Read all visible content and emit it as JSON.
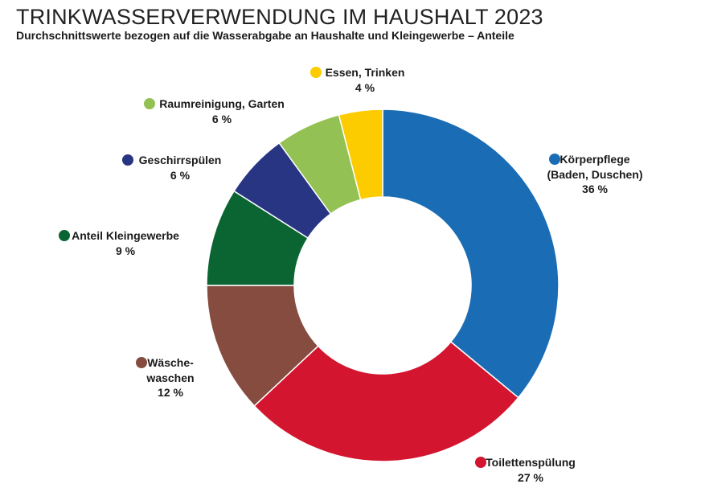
{
  "chart_data": {
    "type": "donut",
    "title": "TRINKWASSERVERWENDUNG IM HAUSHALT 2023",
    "subtitle": "Durchschnittswerte bezogen auf die Wasserabgabe an Haushalte und Kleingewerbe – Anteile",
    "categories": [
      "Körperpflege\n(Baden, Duschen)",
      "Toilettenspülung",
      "Wäsche-\nwaschen",
      "Anteil Kleingewerbe",
      "Geschirrspülen",
      "Raumreinigung, Garten",
      "Essen, Trinken"
    ],
    "values": [
      36,
      27,
      12,
      9,
      6,
      6,
      4
    ],
    "value_labels": [
      "36 %",
      "27 %",
      "12 %",
      "9 %",
      "6 %",
      "6 %",
      "4 %"
    ],
    "colors": [
      "#1a6db5",
      "#d4152f",
      "#864c40",
      "#0b6532",
      "#283583",
      "#94c153",
      "#fccb00"
    ]
  }
}
